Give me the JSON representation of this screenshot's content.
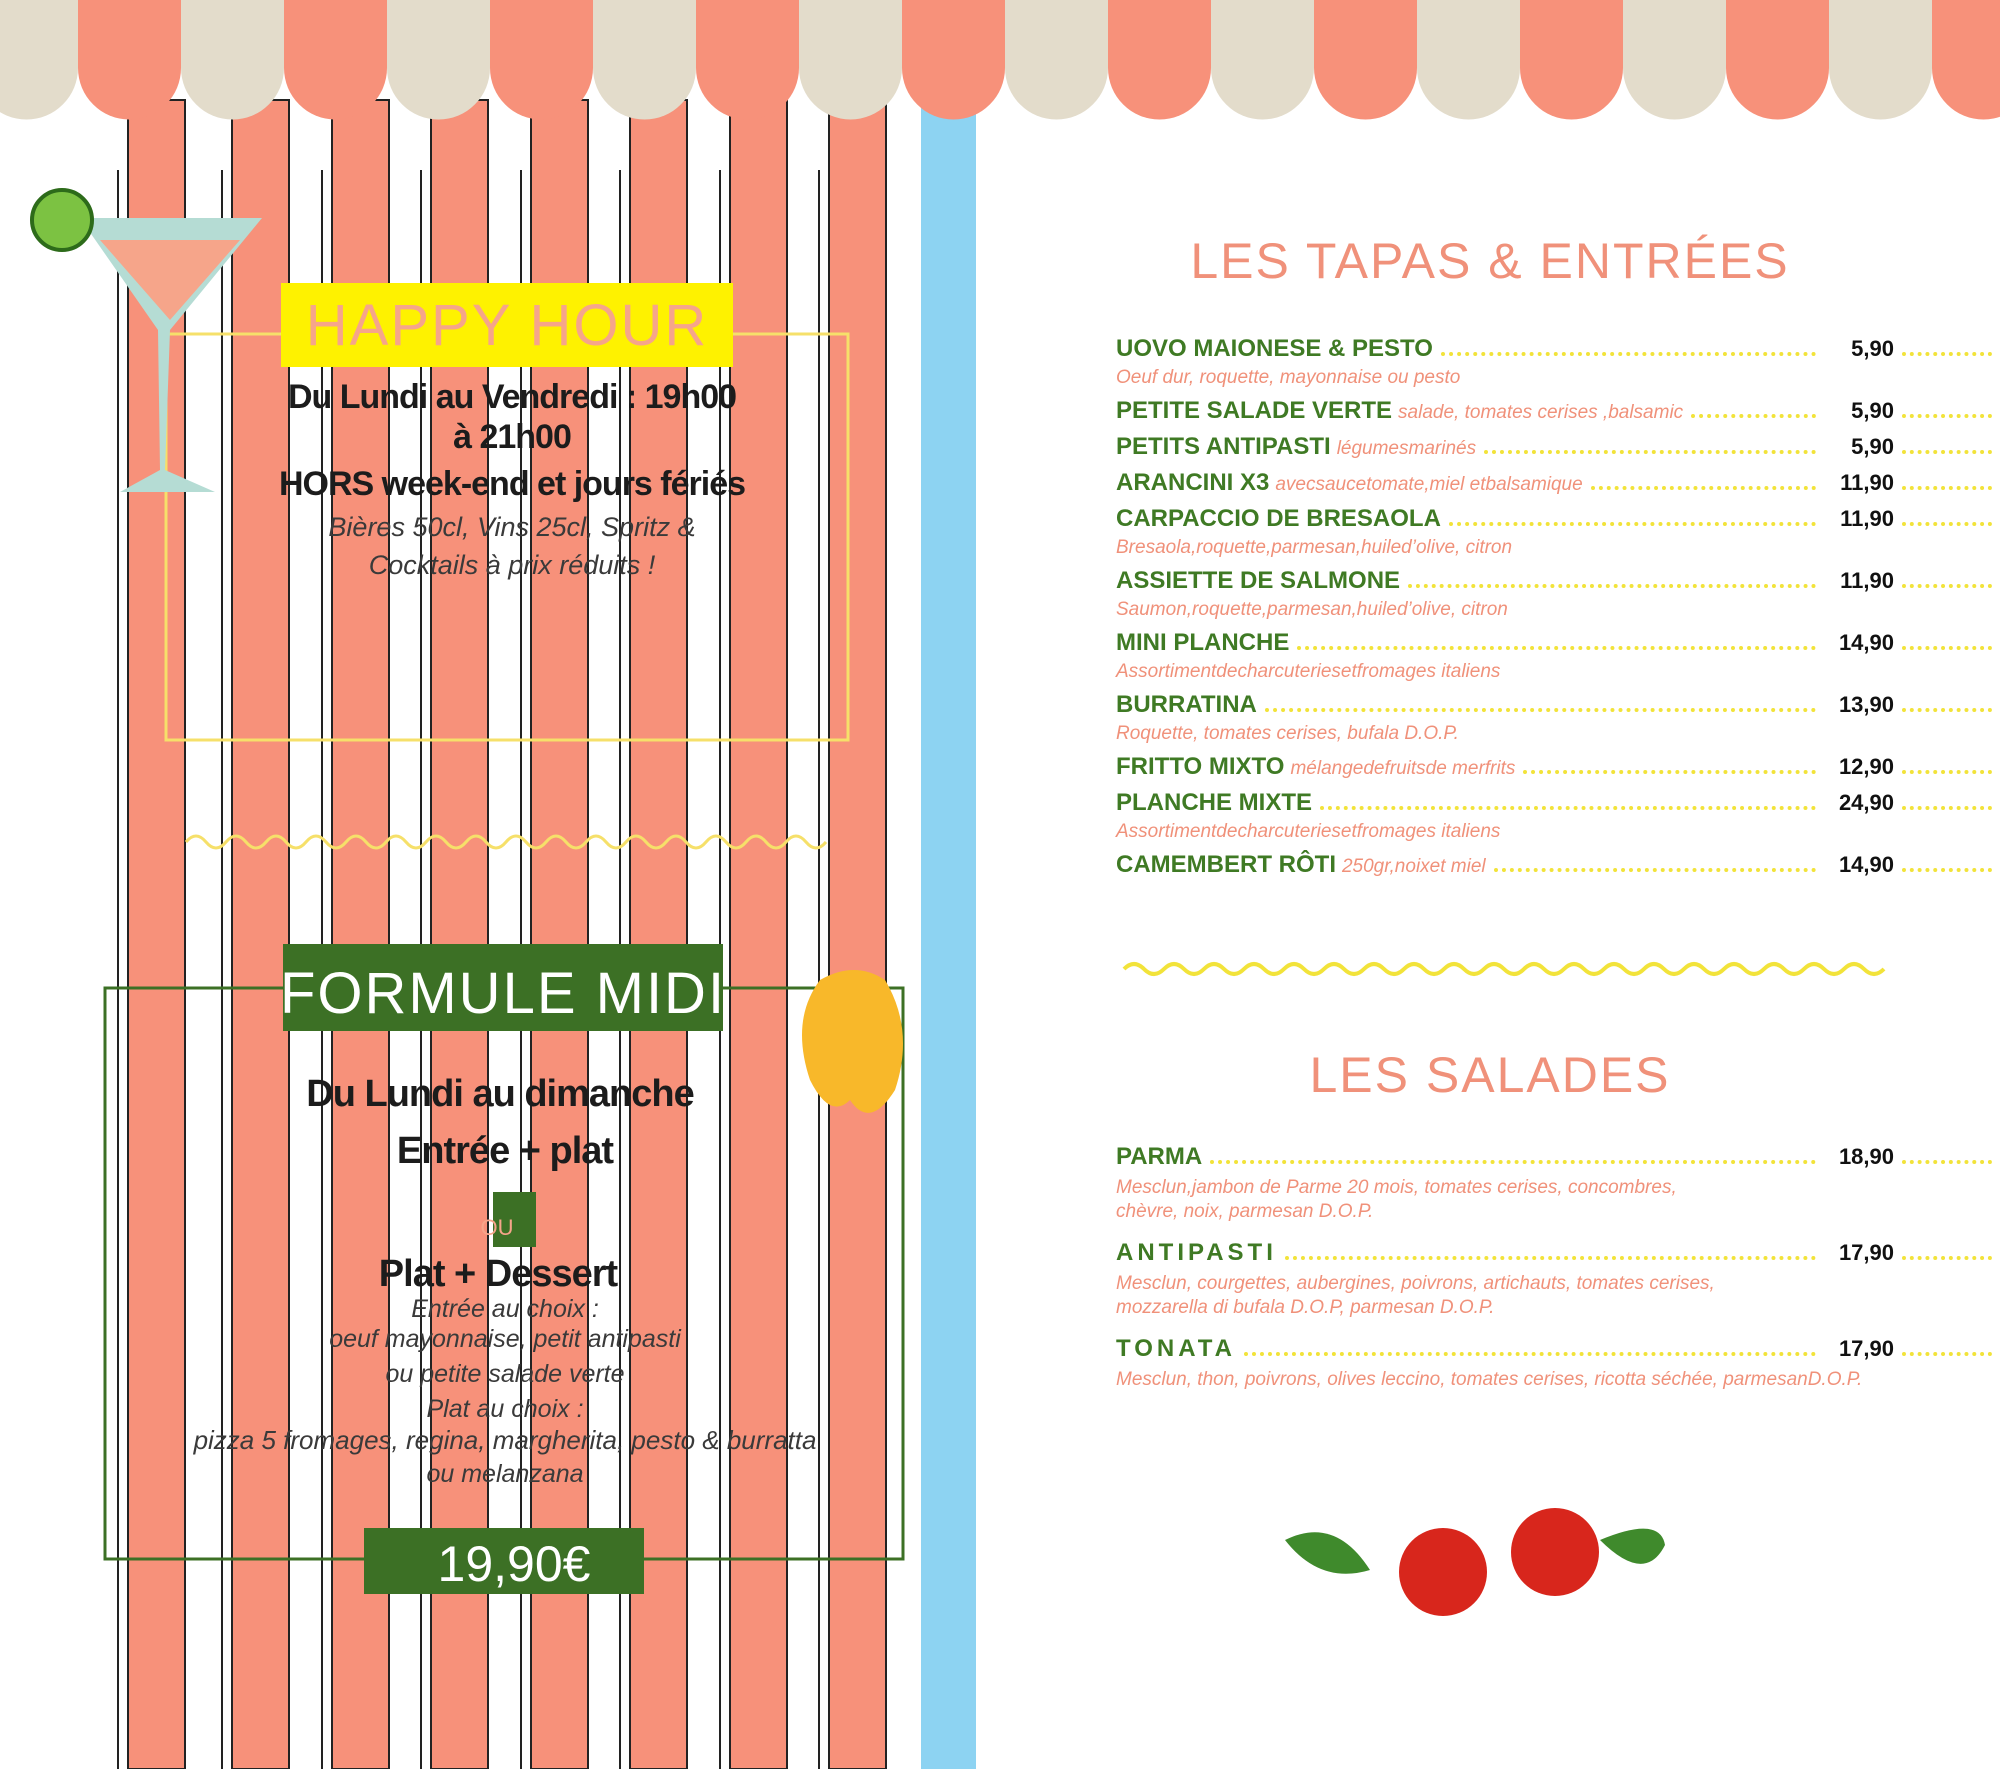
{
  "happy_hour": {
    "title": "HAPPY HOUR",
    "lines": [
      "Du Lundi au Vendredi : 19h00",
      "à 21h00",
      "HORS week-end et jours fériés"
    ],
    "note": [
      "Bières 50cl, Vins 25cl, Spritz &",
      "Cocktails à prix réduits !"
    ]
  },
  "formule_midi": {
    "title": "FORMULE MIDI",
    "line1": "Du Lundi au dimanche",
    "line2": "Entrée + plat",
    "or": "OU",
    "line3": "Plat + Dessert",
    "details": [
      "Entrée au choix :",
      "oeuf mayonnaise, petit antipasti",
      "ou petite salade verte",
      "Plat au choix :",
      "pizza 5 fromages, regina, margherita, pesto & burratta",
      "ou melanzana"
    ],
    "price": "19,90€"
  },
  "tapas": {
    "title": "LES TAPAS & ENTRÉES",
    "items": [
      {
        "name": "UOVO MAIONESE & PESTO",
        "desc": "Oeuf dur, roquette, mayonnaise ou pesto",
        "inline": false,
        "price": "5,90"
      },
      {
        "name": "PETITE SALADE VERTE",
        "desc": "salade, tomates cerises ,balsamic",
        "inline": true,
        "price": "5,90"
      },
      {
        "name": "PETITS ANTIPASTI",
        "desc": "légumesmarinés",
        "inline": true,
        "price": "5,90"
      },
      {
        "name": "ARANCINI X3",
        "desc": "avecsaucetomate,miel etbalsamique",
        "inline": true,
        "price": "11,90"
      },
      {
        "name": "CARPACCIO DE BRESAOLA",
        "desc": "Bresaola,roquette,parmesan,huiled’olive, citron",
        "inline": false,
        "price": "11,90"
      },
      {
        "name": "ASSIETTE DE SALMONE",
        "desc": "Saumon,roquette,parmesan,huiled’olive, citron",
        "inline": false,
        "price": "11,90"
      },
      {
        "name": "MINI PLANCHE",
        "desc": "Assortimentdecharcuteriesetfromages italiens",
        "inline": false,
        "price": "14,90"
      },
      {
        "name": "BURRATINA",
        "desc": "Roquette, tomates cerises, bufala D.O.P.",
        "inline": false,
        "price": "13,90"
      },
      {
        "name": "FRITTO MIXTO",
        "desc": "mélangedefruitsde merfrits",
        "inline": true,
        "price": "12,90"
      },
      {
        "name": "PLANCHE MIXTE",
        "desc": "Assortimentdecharcuteriesetfromages italiens",
        "inline": false,
        "price": "24,90"
      },
      {
        "name": "CAMEMBERT RÔTI",
        "desc": "250gr,noixet miel",
        "inline": true,
        "price": "14,90"
      }
    ]
  },
  "salades": {
    "title": "LES SALADES",
    "items": [
      {
        "name": "PARMA",
        "desc": [
          "Mesclun,jambon de Parme 20 mois, tomates cerises, concombres,",
          "chèvre, noix, parmesan D.O.P."
        ],
        "price": "18,90"
      },
      {
        "name": "ANTIPASTI",
        "desc": [
          "Mesclun, courgettes, aubergines, poivrons, artichauts, tomates cerises,",
          "mozzarella di bufala D.O.P, parmesan D.O.P."
        ],
        "price": "17,90"
      },
      {
        "name": "TONATA",
        "desc": [
          "Mesclun, thon, poivrons, olives leccino, tomates cerises, ricotta séchée, parmesanD.O.P."
        ],
        "price": "17,90"
      }
    ]
  }
}
